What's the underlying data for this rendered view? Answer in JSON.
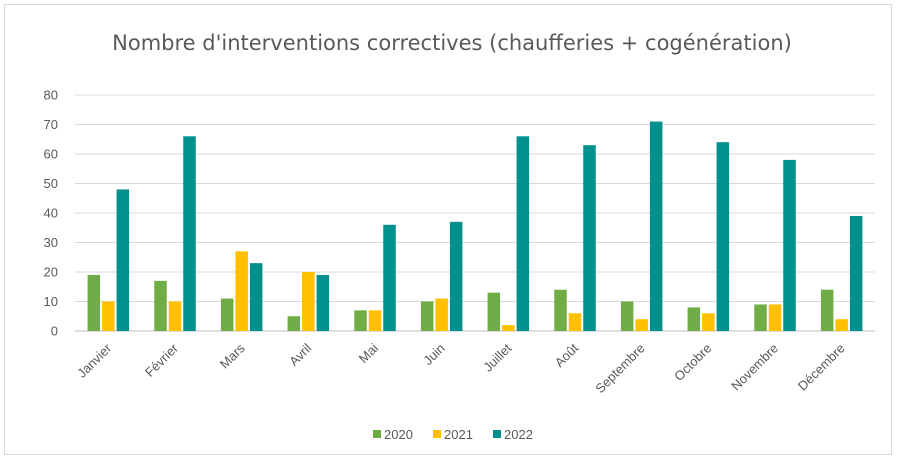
{
  "chart_data": {
    "type": "bar",
    "title": "Nombre d'interventions correctives (chaufferies + cogénération)",
    "xlabel": "",
    "ylabel": "",
    "categories": [
      "Janvier",
      "Février",
      "Mars",
      "Avril",
      "Mai",
      "Juin",
      "Juillet",
      "Août",
      "Septembre",
      "Octobre",
      "Novembre",
      "Décembre"
    ],
    "series": [
      {
        "name": "2020",
        "color": "#70ad47",
        "values": [
          19,
          17,
          11,
          5,
          7,
          10,
          13,
          14,
          10,
          8,
          9,
          14
        ]
      },
      {
        "name": "2021",
        "color": "#ffc000",
        "values": [
          10,
          10,
          27,
          20,
          7,
          11,
          2,
          6,
          4,
          6,
          9,
          4
        ]
      },
      {
        "name": "2022",
        "color": "#00918f",
        "values": [
          48,
          66,
          23,
          19,
          36,
          37,
          66,
          63,
          71,
          64,
          58,
          39
        ]
      }
    ],
    "ylim": [
      0,
      80
    ],
    "yticks": [
      0,
      10,
      20,
      30,
      40,
      50,
      60,
      70,
      80
    ],
    "grid": true,
    "legend_position": "bottom"
  }
}
